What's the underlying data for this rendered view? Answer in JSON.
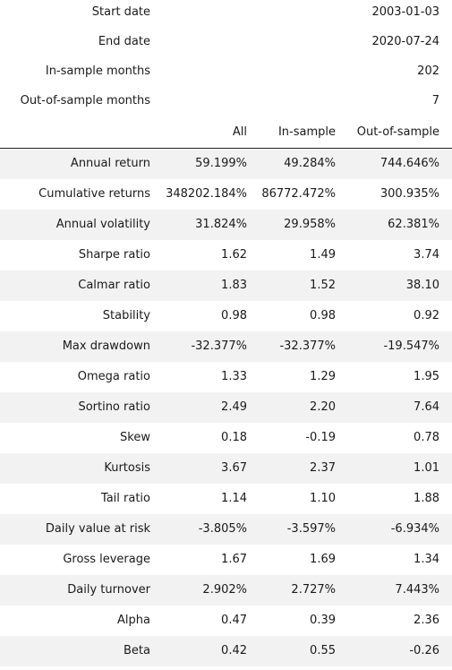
{
  "meta": [
    {
      "label": "Start date",
      "value": "2003-01-03"
    },
    {
      "label": "End date",
      "value": "2020-07-24"
    },
    {
      "label": "In-sample months",
      "value": "202"
    },
    {
      "label": "Out-of-sample months",
      "value": "7"
    }
  ],
  "columns": {
    "all": "All",
    "in_sample": "In-sample",
    "out_of_sample": "Out-of-sample"
  },
  "rows": [
    {
      "label": "Annual return",
      "all": "59.199%",
      "in": "49.284%",
      "out": "744.646%"
    },
    {
      "label": "Cumulative returns",
      "all": "348202.184%",
      "in": "86772.472%",
      "out": "300.935%"
    },
    {
      "label": "Annual volatility",
      "all": "31.824%",
      "in": "29.958%",
      "out": "62.381%"
    },
    {
      "label": "Sharpe ratio",
      "all": "1.62",
      "in": "1.49",
      "out": "3.74"
    },
    {
      "label": "Calmar ratio",
      "all": "1.83",
      "in": "1.52",
      "out": "38.10"
    },
    {
      "label": "Stability",
      "all": "0.98",
      "in": "0.98",
      "out": "0.92"
    },
    {
      "label": "Max drawdown",
      "all": "-32.377%",
      "in": "-32.377%",
      "out": "-19.547%"
    },
    {
      "label": "Omega ratio",
      "all": "1.33",
      "in": "1.29",
      "out": "1.95"
    },
    {
      "label": "Sortino ratio",
      "all": "2.49",
      "in": "2.20",
      "out": "7.64"
    },
    {
      "label": "Skew",
      "all": "0.18",
      "in": "-0.19",
      "out": "0.78"
    },
    {
      "label": "Kurtosis",
      "all": "3.67",
      "in": "2.37",
      "out": "1.01"
    },
    {
      "label": "Tail ratio",
      "all": "1.14",
      "in": "1.10",
      "out": "1.88"
    },
    {
      "label": "Daily value at risk",
      "all": "-3.805%",
      "in": "-3.597%",
      "out": "-6.934%"
    },
    {
      "label": "Gross leverage",
      "all": "1.67",
      "in": "1.69",
      "out": "1.34"
    },
    {
      "label": "Daily turnover",
      "all": "2.902%",
      "in": "2.727%",
      "out": "7.443%"
    },
    {
      "label": "Alpha",
      "all": "0.47",
      "in": "0.39",
      "out": "2.36"
    },
    {
      "label": "Beta",
      "all": "0.42",
      "in": "0.55",
      "out": "-0.26"
    }
  ],
  "colors": {
    "stripe": "#f2f2f2",
    "text": "#1a1a1a",
    "rule": "#222222"
  }
}
